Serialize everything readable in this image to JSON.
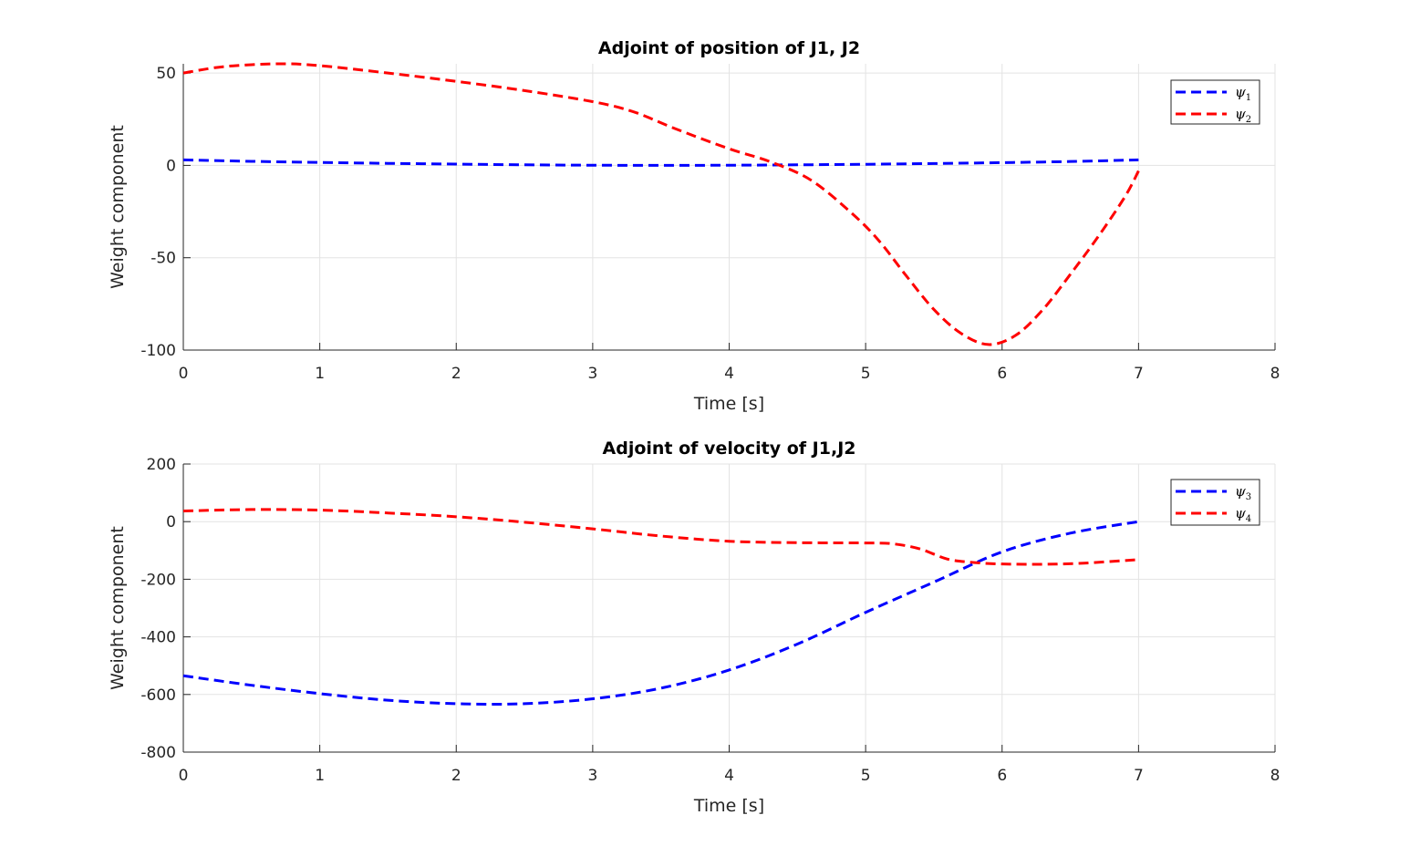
{
  "chart_data": [
    {
      "type": "line",
      "title": "Adjoint of position of J1, J2",
      "xlabel": "Time [s]",
      "ylabel": "Weight component",
      "xlim": [
        0,
        8
      ],
      "ylim": [
        -100,
        55
      ],
      "xticks": [
        0,
        1,
        2,
        3,
        4,
        5,
        6,
        7,
        8
      ],
      "yticks": [
        -100,
        -50,
        0,
        50
      ],
      "xtick_labels": [
        "0",
        "1",
        "2",
        "3",
        "4",
        "5",
        "6",
        "7",
        "8"
      ],
      "ytick_labels": [
        "-100",
        "-50",
        "0",
        "50"
      ],
      "grid": true,
      "legend_position": "top-right",
      "series": [
        {
          "name": "ψ",
          "name_sub": "1",
          "color": "#0000ff",
          "style": "dashed",
          "x": [
            0,
            0.5,
            1,
            1.5,
            2,
            2.5,
            3,
            3.5,
            4,
            4.5,
            5,
            5.5,
            6,
            6.5,
            7
          ],
          "y": [
            3,
            2.2,
            1.6,
            1.1,
            0.7,
            0.3,
            0.1,
            0,
            0.1,
            0.3,
            0.6,
            1.0,
            1.5,
            2.1,
            3
          ]
        },
        {
          "name": "ψ",
          "name_sub": "2",
          "color": "#ff0000",
          "style": "dashed",
          "x": [
            0,
            0.3,
            0.7,
            1,
            1.5,
            2,
            2.5,
            3,
            3.3,
            3.6,
            4,
            4.3,
            4.6,
            4.9,
            5.1,
            5.3,
            5.5,
            5.7,
            5.9,
            6.1,
            6.3,
            6.5,
            6.7,
            6.9,
            7
          ],
          "y": [
            50,
            53.5,
            55,
            54,
            50,
            45.5,
            40.5,
            34.5,
            29,
            20,
            9,
            2,
            -8,
            -26,
            -41,
            -60,
            -78,
            -91,
            -97,
            -92,
            -78,
            -59,
            -39,
            -17,
            -3
          ]
        }
      ]
    },
    {
      "type": "line",
      "title": "Adjoint of velocity of J1,J2",
      "xlabel": "Time [s]",
      "ylabel": "Weight component",
      "xlim": [
        0,
        8
      ],
      "ylim": [
        -800,
        200
      ],
      "xticks": [
        0,
        1,
        2,
        3,
        4,
        5,
        6,
        7,
        8
      ],
      "yticks": [
        -800,
        -600,
        -400,
        -200,
        0,
        200
      ],
      "xtick_labels": [
        "0",
        "1",
        "2",
        "3",
        "4",
        "5",
        "6",
        "7",
        "8"
      ],
      "ytick_labels": [
        "-800",
        "-600",
        "-400",
        "-200",
        "0",
        "200"
      ],
      "grid": true,
      "legend_position": "top-right",
      "series": [
        {
          "name": "ψ",
          "name_sub": "3",
          "color": "#0000ff",
          "style": "dashed",
          "x": [
            0,
            0.5,
            1,
            1.5,
            2,
            2.5,
            3,
            3.5,
            4,
            4.5,
            5,
            5.5,
            6,
            6.5,
            7
          ],
          "y": [
            -535,
            -568,
            -597,
            -620,
            -632,
            -632,
            -615,
            -578,
            -515,
            -425,
            -315,
            -210,
            -105,
            -40,
            0
          ]
        },
        {
          "name": "ψ",
          "name_sub": "4",
          "color": "#ff0000",
          "style": "dashed",
          "x": [
            0,
            0.5,
            1,
            1.5,
            2,
            2.5,
            3,
            3.5,
            4,
            4.5,
            5,
            5.2,
            5.4,
            5.6,
            5.8,
            6,
            6.3,
            6.6,
            7
          ],
          "y": [
            37,
            42,
            40,
            30,
            17,
            -2,
            -25,
            -50,
            -68,
            -73,
            -74,
            -77,
            -95,
            -130,
            -142,
            -147,
            -148,
            -144,
            -132
          ]
        }
      ]
    }
  ]
}
